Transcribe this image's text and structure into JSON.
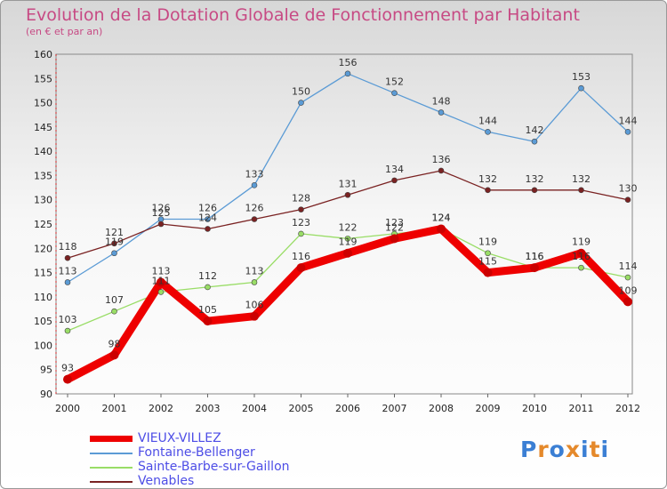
{
  "header": {
    "title": "Evolution de la Dotation Globale de Fonctionnement par Habitant",
    "subtitle": "(en € et par an)"
  },
  "logo": {
    "text": "Proxiti",
    "colors": [
      "#3b7fd4",
      "#e5892b",
      "#3b7fd4",
      "#e5892b",
      "#3b7fd4",
      "#e5892b",
      "#3b7fd4"
    ]
  },
  "chart_data": {
    "type": "line",
    "title": "Evolution de la Dotation Globale de Fonctionnement par Habitant",
    "subtitle": "(en € et par an)",
    "xlabel": "",
    "ylabel": "",
    "x": [
      "2000",
      "2001",
      "2002",
      "2003",
      "2004",
      "2005",
      "2006",
      "2007",
      "2008",
      "2009",
      "2010",
      "2011",
      "2012"
    ],
    "ylim": [
      90,
      160
    ],
    "yticks": [
      "90",
      "95",
      "100",
      "105",
      "110",
      "115",
      "120",
      "125",
      "130",
      "135",
      "140",
      "145",
      "150",
      "155",
      "160"
    ],
    "grid": false,
    "legend": "bottom-left",
    "series": [
      {
        "name": "VIEUX-VILLEZ",
        "color": "#ee0000",
        "values": [
          93,
          98,
          113,
          105,
          106,
          116,
          119,
          122,
          124,
          115,
          116,
          119,
          109
        ],
        "labels": [
          "93",
          "98",
          "113",
          "105",
          "106",
          "116",
          "119",
          "122",
          "124",
          "115",
          "116",
          "119",
          "109"
        ]
      },
      {
        "name": "Fontaine-Bellenger",
        "color": "#5b9bd5",
        "values": [
          113,
          119,
          126,
          126,
          133,
          150,
          156,
          152,
          148,
          144,
          142,
          153,
          144
        ],
        "labels": [
          "113",
          "119",
          "126",
          "126",
          "133",
          "150",
          "156",
          "152",
          "148",
          "144",
          "142",
          "153",
          "144"
        ]
      },
      {
        "name": "Sainte-Barbe-sur-Gaillon",
        "color": "#99dd66",
        "values": [
          103,
          107,
          111,
          112,
          113,
          123,
          122,
          123,
          124,
          119,
          116,
          116,
          114
        ],
        "labels": [
          "103",
          "107",
          "111",
          "112",
          "113",
          "123",
          "122",
          "123",
          "124",
          "119",
          "116",
          "116",
          "114"
        ]
      },
      {
        "name": "Venables",
        "color": "#7a2222",
        "values": [
          118,
          121,
          125,
          124,
          126,
          128,
          131,
          134,
          136,
          132,
          132,
          132,
          130
        ],
        "labels": [
          "118",
          "121",
          "125",
          "124",
          "126",
          "128",
          "131",
          "134",
          "136",
          "132",
          "132",
          "132",
          "130"
        ]
      }
    ]
  }
}
